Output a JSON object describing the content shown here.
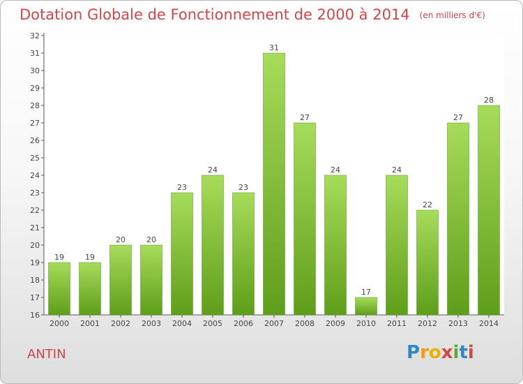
{
  "title": "Dotation Globale de Fonctionnement de 2000 à 2014",
  "subtitle": "(en milliers d'€)",
  "commune": "ANTIN",
  "logo": {
    "text": "Proxiti",
    "letters": [
      "P",
      "r",
      "o",
      "x",
      "i",
      "t",
      "i"
    ],
    "colors": [
      "#2e88c8",
      "#f39c12",
      "#e8b000",
      "#d0474a",
      "#5bab3a",
      "#2e88c8",
      "#d0474a"
    ]
  },
  "colors": {
    "bar": "#7cbf2f",
    "bar_light": "#a6dc5a",
    "title": "#d0474a"
  },
  "chart_data": {
    "type": "bar",
    "title": "Dotation Globale de Fonctionnement de 2000 à 2014",
    "subtitle": "(en milliers d'€)",
    "xlabel": "",
    "ylabel": "",
    "categories": [
      "2000",
      "2001",
      "2002",
      "2003",
      "2004",
      "2005",
      "2006",
      "2007",
      "2008",
      "2009",
      "2010",
      "2011",
      "2012",
      "2013",
      "2014"
    ],
    "values": [
      19,
      19,
      20,
      20,
      23,
      24,
      23,
      31,
      27,
      24,
      17,
      24,
      22,
      27,
      28
    ],
    "ylim": [
      16,
      32
    ],
    "yticks": [
      16,
      17,
      18,
      19,
      20,
      21,
      22,
      23,
      24,
      25,
      26,
      27,
      28,
      29,
      30,
      31,
      32
    ],
    "grid": false,
    "legend": "none"
  }
}
